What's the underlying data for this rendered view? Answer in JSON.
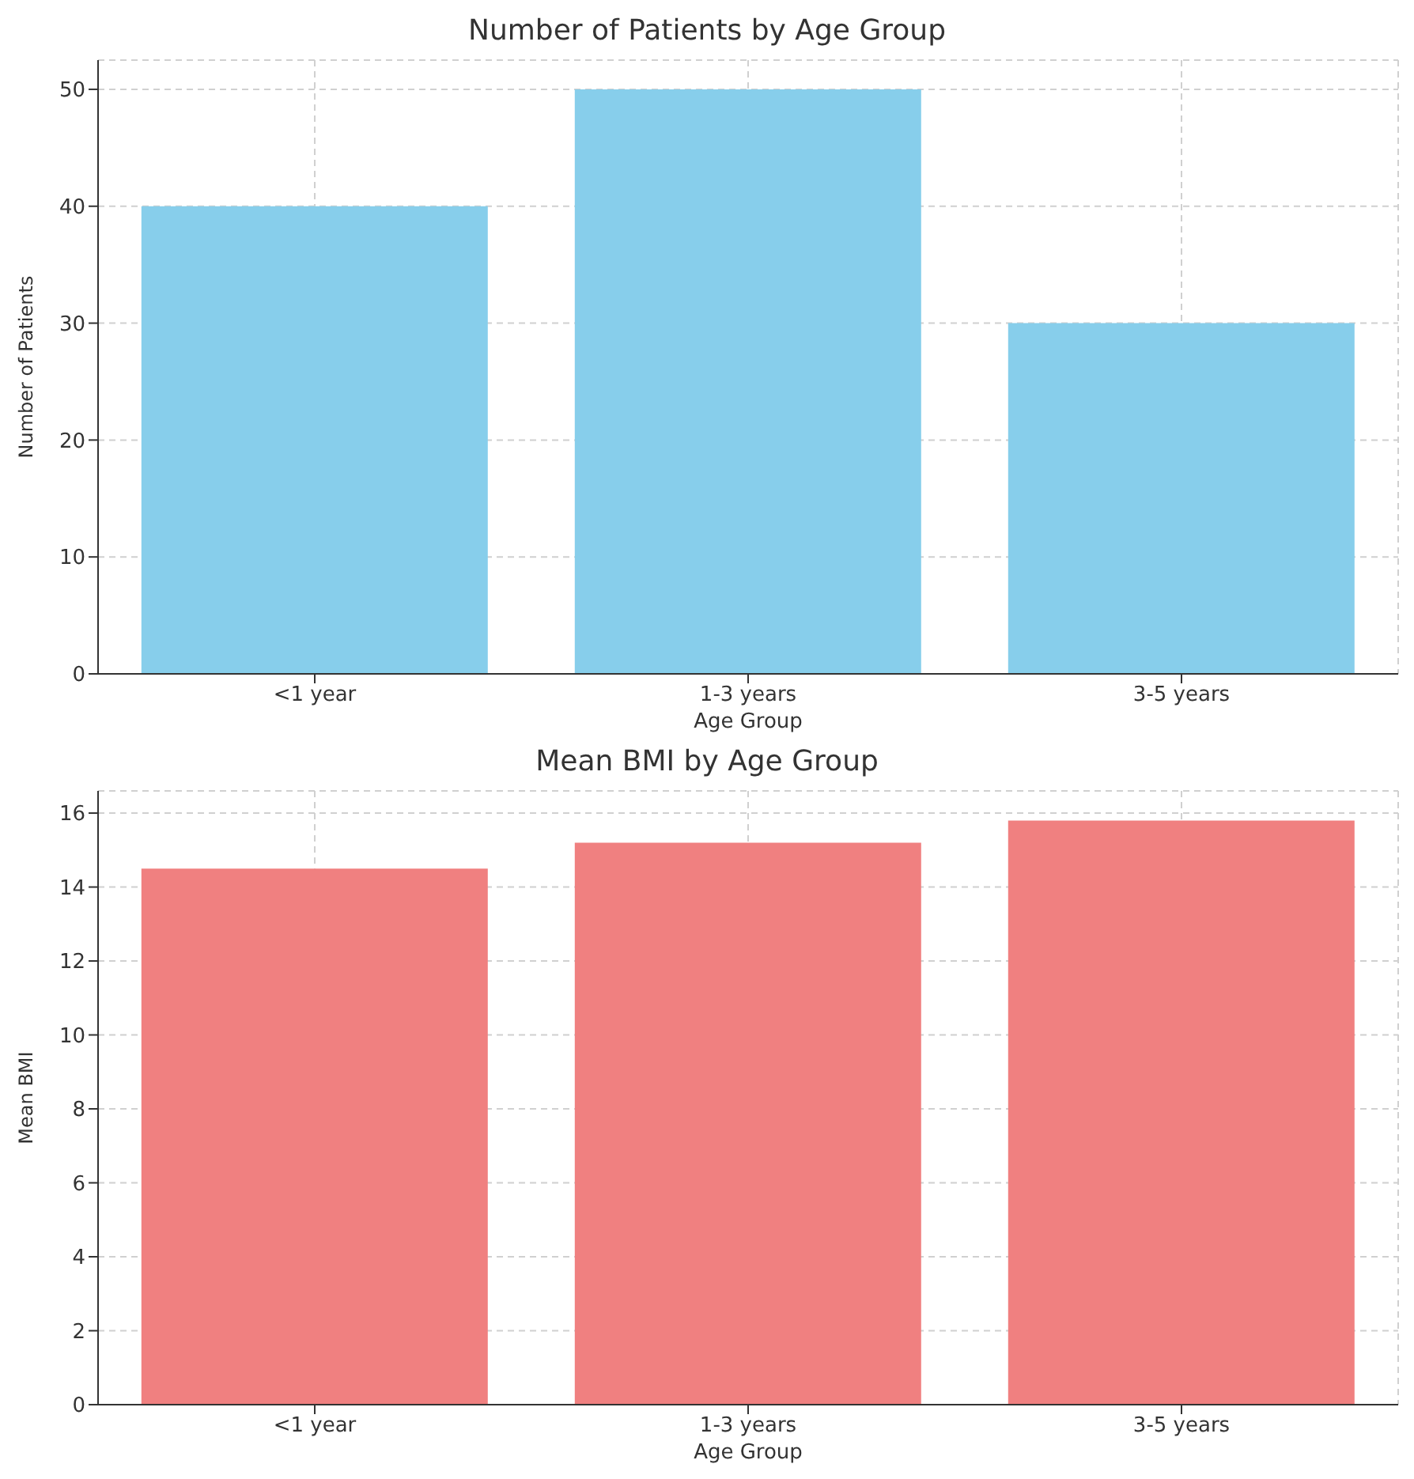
{
  "chart_data": [
    {
      "type": "bar",
      "title": "Number of Patients by Age Group",
      "xlabel": "Age Group",
      "ylabel": "Number of Patients",
      "categories": [
        "<1 year",
        "1-3 years",
        "3-5 years"
      ],
      "values": [
        40,
        50,
        30
      ],
      "color": "#87ceeb",
      "ylim": [
        0,
        52.5
      ],
      "yticks": [
        0,
        10,
        20,
        30,
        40,
        50
      ],
      "grid": true
    },
    {
      "type": "bar",
      "title": "Mean BMI by Age Group",
      "xlabel": "Age Group",
      "ylabel": "Mean BMI",
      "categories": [
        "<1 year",
        "1-3 years",
        "3-5 years"
      ],
      "values": [
        14.5,
        15.2,
        15.8
      ],
      "color": "#f08080",
      "ylim": [
        0,
        16.6
      ],
      "yticks": [
        0,
        2,
        4,
        6,
        8,
        10,
        12,
        14,
        16
      ],
      "grid": true
    }
  ]
}
